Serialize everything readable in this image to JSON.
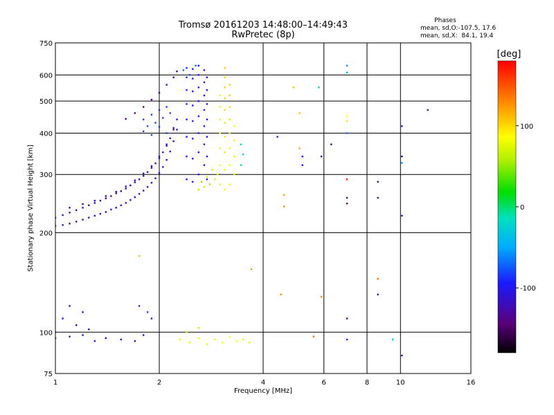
{
  "chart_data": {
    "type": "scatter",
    "title": "Tromsø 20161203 14:48:00–14:49:43",
    "subtitle": "RwPretec (8p)",
    "xlabel": "Frequency [MHz]",
    "ylabel": "Stationary phase Virtual Height [km]",
    "x_scale": "log",
    "y_scale": "log",
    "xlim": [
      1,
      16
    ],
    "ylim": [
      75,
      750
    ],
    "x_ticks": [
      1,
      2,
      4,
      6,
      8,
      10,
      16
    ],
    "x_tick_labels": [
      "1",
      "2",
      "4",
      "6",
      "8",
      "10",
      "16"
    ],
    "y_ticks": [
      75,
      100,
      200,
      300,
      400,
      500,
      600,
      750
    ],
    "y_tick_labels": [
      "75",
      "100",
      "200",
      "300",
      "400",
      "500",
      "600",
      "750"
    ],
    "grid": true,
    "colorbar": {
      "label": "[deg]",
      "range": [
        -180,
        180
      ],
      "ticks": [
        -100,
        0,
        100
      ],
      "tick_labels": [
        "-100",
        "0",
        "100"
      ]
    },
    "phases_box": {
      "heading": "Phases",
      "line1": "mean, sd,O:-107.5, 17.6",
      "line2": "mean, sd,X:  84.1, 19.4"
    },
    "series": [
      {
        "points": [
          [
            1.0,
            210,
            -120
          ],
          [
            1.05,
            211,
            -118
          ],
          [
            1.1,
            213,
            -120
          ],
          [
            1.15,
            216,
            -118
          ],
          [
            1.2,
            219,
            -120
          ],
          [
            1.25,
            222,
            -118
          ],
          [
            1.3,
            225,
            -117
          ],
          [
            1.35,
            228,
            -118
          ],
          [
            1.4,
            231,
            -117
          ],
          [
            1.45,
            235,
            -116
          ],
          [
            1.5,
            238,
            -117
          ],
          [
            1.55,
            242,
            -116
          ],
          [
            1.6,
            246,
            -115
          ],
          [
            1.65,
            251,
            -116
          ],
          [
            1.7,
            256,
            -115
          ],
          [
            1.75,
            262,
            -115
          ],
          [
            1.8,
            268,
            -114
          ],
          [
            1.85,
            275,
            -114
          ],
          [
            1.9,
            283,
            -113
          ],
          [
            1.95,
            292,
            -114
          ],
          [
            2.0,
            303,
            -113
          ],
          [
            2.05,
            316,
            -112
          ],
          [
            2.1,
            332,
            -112
          ],
          [
            2.15,
            352,
            -111
          ],
          [
            2.2,
            378,
            -111
          ],
          [
            2.25,
            410,
            -112
          ],
          [
            1.0,
            222,
            -130
          ],
          [
            1.05,
            226,
            -128
          ],
          [
            1.1,
            230,
            -130
          ],
          [
            1.15,
            234,
            -128
          ],
          [
            1.2,
            238,
            -126
          ],
          [
            1.25,
            242,
            -127
          ],
          [
            1.3,
            246,
            -126
          ],
          [
            1.35,
            250,
            -125
          ],
          [
            1.4,
            254,
            -126
          ],
          [
            1.45,
            258,
            -125
          ],
          [
            1.5,
            263,
            -124
          ],
          [
            1.55,
            267,
            -125
          ],
          [
            1.6,
            272,
            -124
          ],
          [
            1.65,
            278,
            -123
          ],
          [
            1.7,
            284,
            -124
          ],
          [
            1.75,
            290,
            -123
          ],
          [
            1.8,
            297,
            -122
          ],
          [
            1.85,
            305,
            -122
          ],
          [
            1.9,
            314,
            -121
          ],
          [
            1.95,
            324,
            -121
          ],
          [
            2.0,
            336,
            -120
          ],
          [
            2.05,
            350,
            -120
          ],
          [
            2.1,
            366,
            -119
          ],
          [
            2.15,
            386,
            -118
          ],
          [
            2.2,
            410,
            -118
          ],
          [
            2.25,
            440,
            -117
          ],
          [
            1.1,
            238,
            -133
          ],
          [
            1.2,
            244,
            -130
          ],
          [
            1.3,
            250,
            -128
          ],
          [
            1.4,
            258,
            -127
          ],
          [
            1.5,
            266,
            -126
          ],
          [
            1.6,
            276,
            -125
          ],
          [
            1.7,
            288,
            -124
          ],
          [
            1.8,
            302,
            -124
          ],
          [
            1.9,
            318,
            -123
          ],
          [
            2.0,
            340,
            -122
          ],
          [
            2.1,
            370,
            -121
          ],
          [
            2.2,
            415,
            -120
          ],
          [
            1.6,
            442,
            -135
          ],
          [
            1.7,
            460,
            -140
          ],
          [
            1.8,
            480,
            -138
          ],
          [
            1.9,
            505,
            -140
          ],
          [
            2.0,
            530,
            -138
          ],
          [
            2.1,
            560,
            -136
          ],
          [
            2.2,
            590,
            -135
          ],
          [
            2.25,
            615,
            -134
          ],
          [
            1.8,
            440,
            -82
          ],
          [
            1.85,
            420,
            -80
          ],
          [
            1.9,
            455,
            -84
          ],
          [
            1.95,
            430,
            -80
          ],
          [
            2.0,
            470,
            -86
          ],
          [
            2.05,
            445,
            -82
          ],
          [
            2.1,
            480,
            -84
          ],
          [
            2.15,
            460,
            -80
          ],
          [
            1.8,
            405,
            -85
          ],
          [
            1.9,
            395,
            -82
          ],
          [
            2.0,
            418,
            -84
          ],
          [
            2.1,
            400,
            -81
          ],
          [
            2.4,
            290,
            -95
          ],
          [
            2.4,
            340,
            -95
          ],
          [
            2.4,
            390,
            -93
          ],
          [
            2.4,
            440,
            -94
          ],
          [
            2.4,
            490,
            -92
          ],
          [
            2.4,
            540,
            -91
          ],
          [
            2.4,
            590,
            -92
          ],
          [
            2.4,
            630,
            -90
          ],
          [
            2.5,
            285,
            -98
          ],
          [
            2.5,
            335,
            -98
          ],
          [
            2.5,
            385,
            -96
          ],
          [
            2.5,
            435,
            -97
          ],
          [
            2.5,
            485,
            -95
          ],
          [
            2.5,
            535,
            -94
          ],
          [
            2.5,
            585,
            -95
          ],
          [
            2.5,
            625,
            -93
          ],
          [
            2.6,
            300,
            -100
          ],
          [
            2.6,
            350,
            -100
          ],
          [
            2.6,
            400,
            -98
          ],
          [
            2.6,
            450,
            -99
          ],
          [
            2.6,
            500,
            -97
          ],
          [
            2.6,
            550,
            -96
          ],
          [
            2.6,
            600,
            -97
          ],
          [
            2.6,
            640,
            -95
          ],
          [
            2.7,
            320,
            -110
          ],
          [
            2.7,
            370,
            -110
          ],
          [
            2.7,
            420,
            -108
          ],
          [
            2.7,
            470,
            -109
          ],
          [
            2.7,
            520,
            -107
          ],
          [
            2.7,
            570,
            -106
          ],
          [
            2.7,
            620,
            -107
          ],
          [
            2.75,
            290,
            -112
          ],
          [
            2.75,
            340,
            -112
          ],
          [
            2.75,
            390,
            -110
          ],
          [
            2.75,
            440,
            -111
          ],
          [
            2.75,
            490,
            -109
          ],
          [
            2.75,
            540,
            -108
          ],
          [
            2.75,
            590,
            -109
          ],
          [
            2.35,
            620,
            -70
          ],
          [
            2.55,
            640,
            -72
          ],
          [
            2.45,
            600,
            -75
          ],
          [
            2.6,
            270,
            60
          ],
          [
            2.7,
            275,
            65
          ],
          [
            2.8,
            280,
            55
          ],
          [
            2.9,
            290,
            70
          ],
          [
            2.95,
            300,
            75
          ],
          [
            2.65,
            285,
            50
          ],
          [
            2.75,
            295,
            60
          ],
          [
            2.85,
            310,
            62
          ],
          [
            3.0,
            280,
            80
          ],
          [
            3.0,
            320,
            82
          ],
          [
            3.0,
            360,
            84
          ],
          [
            3.0,
            400,
            86
          ],
          [
            3.0,
            440,
            88
          ],
          [
            3.0,
            480,
            90
          ],
          [
            3.0,
            520,
            92
          ],
          [
            3.1,
            270,
            90
          ],
          [
            3.1,
            310,
            92
          ],
          [
            3.1,
            350,
            94
          ],
          [
            3.1,
            390,
            96
          ],
          [
            3.1,
            430,
            98
          ],
          [
            3.1,
            470,
            100
          ],
          [
            3.1,
            510,
            102
          ],
          [
            3.1,
            550,
            104
          ],
          [
            3.1,
            590,
            106
          ],
          [
            3.1,
            630,
            108
          ],
          [
            3.2,
            280,
            88
          ],
          [
            3.2,
            320,
            90
          ],
          [
            3.2,
            360,
            92
          ],
          [
            3.2,
            400,
            94
          ],
          [
            3.2,
            440,
            96
          ],
          [
            3.2,
            480,
            98
          ],
          [
            3.2,
            520,
            100
          ],
          [
            3.2,
            560,
            102
          ],
          [
            3.3,
            300,
            75
          ],
          [
            3.3,
            340,
            78
          ],
          [
            3.3,
            380,
            80
          ],
          [
            3.3,
            420,
            82
          ],
          [
            3.45,
            320,
            -20
          ],
          [
            3.5,
            345,
            -25
          ],
          [
            3.45,
            370,
            -15
          ],
          [
            1.0,
            100,
            -120
          ],
          [
            1.05,
            110,
            -118
          ],
          [
            1.1,
            97,
            -122
          ],
          [
            1.15,
            105,
            -117
          ],
          [
            1.2,
            115,
            -120
          ],
          [
            1.25,
            102,
            -118
          ],
          [
            1.0,
            96,
            -125
          ],
          [
            1.1,
            120,
            -115
          ],
          [
            1.2,
            98,
            -120
          ],
          [
            1.3,
            94,
            -125
          ],
          [
            1.4,
            96,
            -124
          ],
          [
            1.55,
            95,
            -124
          ],
          [
            1.7,
            94,
            -122
          ],
          [
            1.8,
            98,
            -110
          ],
          [
            1.9,
            110,
            -100
          ],
          [
            1.75,
            120,
            -90
          ],
          [
            1.85,
            115,
            -80
          ],
          [
            2.3,
            95,
            85
          ],
          [
            2.45,
            93,
            82
          ],
          [
            2.6,
            96,
            80
          ],
          [
            2.75,
            92,
            78
          ],
          [
            2.9,
            95,
            90
          ],
          [
            3.05,
            93,
            88
          ],
          [
            3.2,
            97,
            86
          ],
          [
            3.35,
            94,
            84
          ],
          [
            3.5,
            95,
            80
          ],
          [
            3.65,
            93,
            78
          ],
          [
            2.4,
            100,
            70
          ],
          [
            2.6,
            103,
            65
          ],
          [
            4.4,
            390,
            -110
          ],
          [
            4.6,
            260,
            120
          ],
          [
            4.6,
            240,
            125
          ],
          [
            4.9,
            550,
            110
          ],
          [
            5.1,
            460,
            110
          ],
          [
            5.1,
            360,
            120
          ],
          [
            5.2,
            320,
            -120
          ],
          [
            5.2,
            340,
            -100
          ],
          [
            5.8,
            550,
            -30
          ],
          [
            5.9,
            340,
            -130
          ],
          [
            6.3,
            370,
            -140
          ],
          [
            7.0,
            640,
            -60
          ],
          [
            7.0,
            610,
            -50
          ],
          [
            7.0,
            450,
            90
          ],
          [
            7.0,
            435,
            100
          ],
          [
            7.0,
            400,
            -70
          ],
          [
            7.0,
            290,
            170
          ],
          [
            7.0,
            255,
            -130
          ],
          [
            7.0,
            245,
            -130
          ],
          [
            8.6,
            285,
            -130
          ],
          [
            8.6,
            255,
            -130
          ],
          [
            10.1,
            420,
            -100
          ],
          [
            10.1,
            340,
            -150
          ],
          [
            10.1,
            325,
            -60
          ],
          [
            10.1,
            225,
            -130
          ],
          [
            12.0,
            470,
            -125
          ],
          [
            1.75,
            170,
            110
          ],
          [
            3.7,
            155,
            125
          ],
          [
            4.5,
            130,
            130
          ],
          [
            5.9,
            128,
            130
          ],
          [
            5.6,
            97,
            140
          ],
          [
            7.0,
            110,
            -130
          ],
          [
            7.0,
            95,
            -100
          ],
          [
            8.6,
            145,
            140
          ],
          [
            8.6,
            130,
            -120
          ],
          [
            9.5,
            95,
            -30
          ],
          [
            10.1,
            85,
            -140
          ]
        ]
      }
    ]
  }
}
